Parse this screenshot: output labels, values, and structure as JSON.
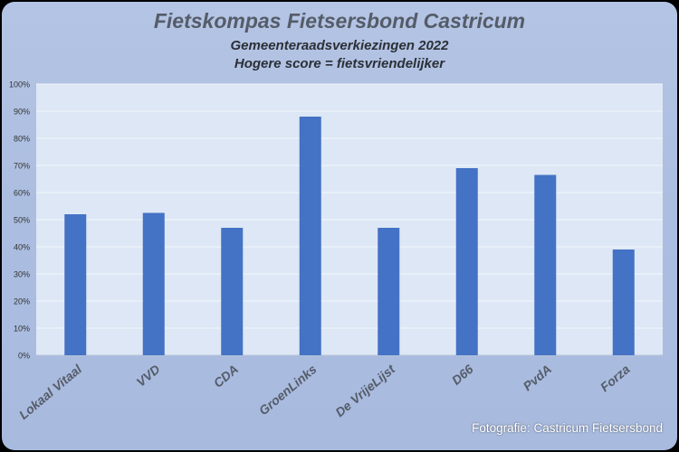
{
  "chart_data": {
    "type": "bar",
    "title": "Fietskompas Fietsersbond Castricum",
    "subtitle": "Gemeenteraadsverkiezingen 2022",
    "subtitle2": "Hogere score = fietsvriendelijker",
    "categories": [
      "Lokaal Vitaal",
      "VVD",
      "CDA",
      "GroenLinks",
      "De VrijeLijst",
      "D66",
      "PvdA",
      "Forza"
    ],
    "values": [
      52,
      52.5,
      47,
      88,
      47,
      69,
      66.5,
      39
    ],
    "ylim": [
      0,
      100
    ],
    "yticks": [
      "0%",
      "10%",
      "20%",
      "30%",
      "40%",
      "50%",
      "60%",
      "70%",
      "80%",
      "90%",
      "100%"
    ],
    "grid": true,
    "bar_color": "#4472c4"
  },
  "credit": "Fotografie: Castricum Fietsersbond"
}
